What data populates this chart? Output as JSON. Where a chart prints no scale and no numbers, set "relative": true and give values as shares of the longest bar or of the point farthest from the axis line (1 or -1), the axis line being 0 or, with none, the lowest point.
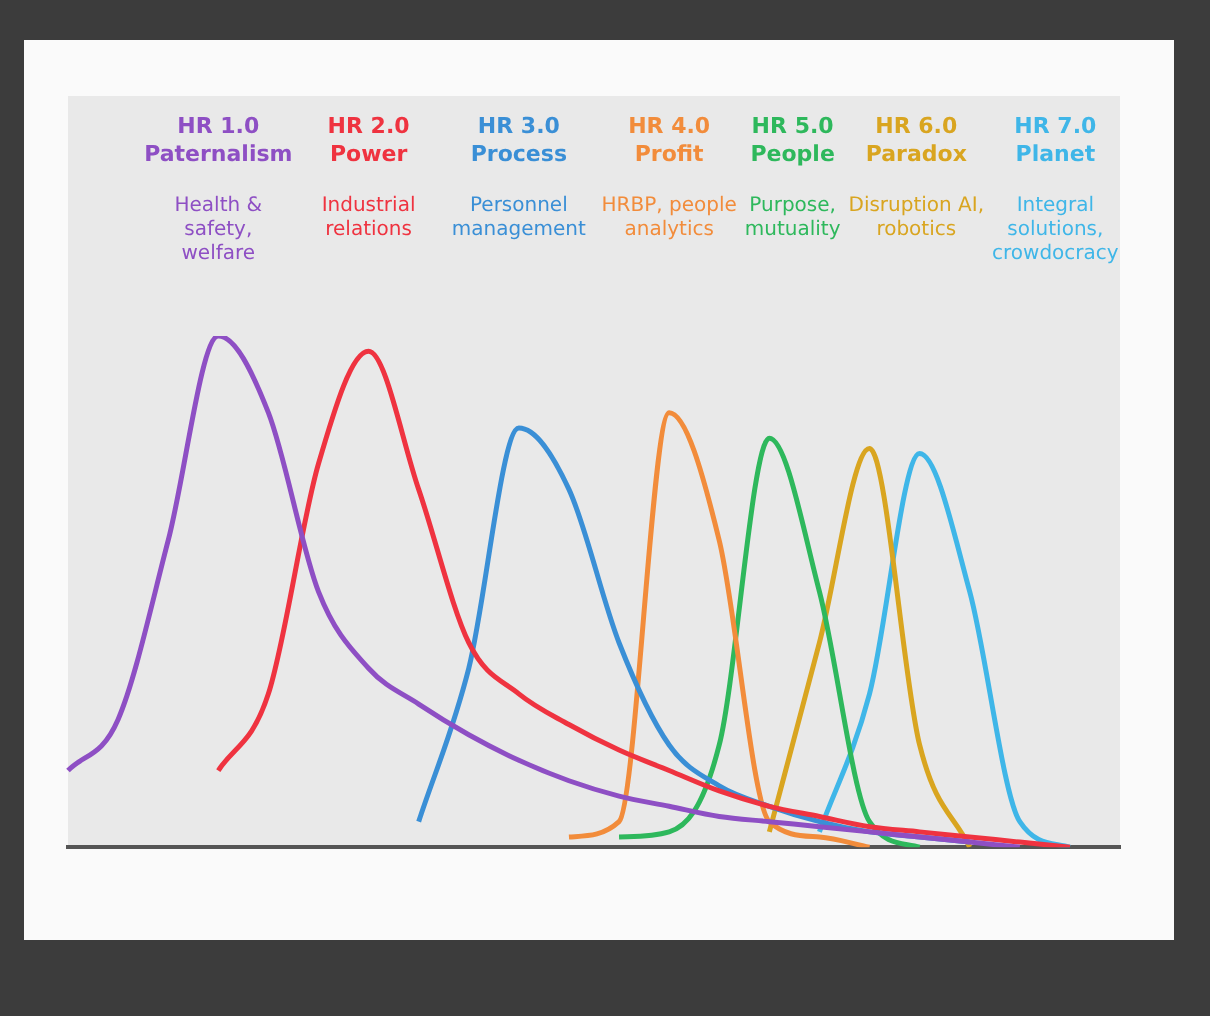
{
  "chart_data": {
    "type": "line",
    "relative": true,
    "marker": "none",
    "grid": false,
    "legend": false,
    "categories": [
      null,
      null,
      null,
      null,
      null,
      null,
      null,
      null,
      null,
      null,
      null,
      null,
      null,
      null,
      null,
      null,
      null,
      null,
      null,
      null,
      null,
      null
    ],
    "series": [
      {
        "name": "HR 1.0 Paternalism",
        "color": "#8e4fc4",
        "values": [
          0.15,
          0.25,
          0.6,
          1,
          0.85,
          0.5,
          0.35,
          0.28,
          0.22,
          0.17,
          0.13,
          0.1,
          0.08,
          0.06,
          0.05,
          0.04,
          0.03,
          0.02,
          0.01,
          0,
          null,
          null
        ]
      },
      {
        "name": "HR 2.0 Power",
        "color": "#ef3340",
        "values": [
          null,
          null,
          null,
          0.15,
          0.3,
          0.75,
          0.97,
          0.7,
          0.4,
          0.3,
          0.24,
          0.19,
          0.15,
          0.11,
          0.08,
          0.06,
          0.04,
          0.03,
          0.02,
          0.01,
          0,
          null
        ]
      },
      {
        "name": "HR 3.0 Process",
        "color": "#3a8fd6",
        "values": [
          null,
          null,
          null,
          null,
          null,
          null,
          null,
          0.05,
          0.35,
          0.82,
          0.7,
          0.4,
          0.2,
          0.12,
          0.08,
          0.05,
          0.03,
          0.02,
          0.01,
          null,
          null,
          null
        ]
      },
      {
        "name": "HR 4.0 Profit",
        "color": "#f28c3b",
        "values": [
          null,
          null,
          null,
          null,
          null,
          null,
          null,
          null,
          null,
          null,
          0.02,
          0.05,
          0.85,
          0.6,
          0.05,
          0.02,
          0,
          null,
          null,
          null,
          null,
          null
        ]
      },
      {
        "name": "HR 5.0 People",
        "color": "#2eb85c",
        "values": [
          null,
          null,
          null,
          null,
          null,
          null,
          null,
          null,
          null,
          null,
          null,
          0.02,
          0.03,
          0.2,
          0.8,
          0.5,
          0.05,
          0,
          null,
          null,
          null,
          null
        ]
      },
      {
        "name": "HR 6.0 Paradox",
        "color": "#d9a520",
        "values": [
          null,
          null,
          null,
          null,
          null,
          null,
          null,
          null,
          null,
          null,
          null,
          null,
          null,
          null,
          0.03,
          0.4,
          0.78,
          0.2,
          0,
          null,
          null,
          null
        ]
      },
      {
        "name": "HR 7.0 Planet",
        "color": "#3fb6e8",
        "values": [
          null,
          null,
          null,
          null,
          null,
          null,
          null,
          null,
          null,
          null,
          null,
          null,
          null,
          null,
          null,
          0.03,
          0.3,
          0.77,
          0.5,
          0.05,
          0,
          null
        ]
      }
    ],
    "annotations": [
      "Health & safety, welfare",
      "Industrial relations",
      "Personnel management",
      "HRBP, people analytics",
      "Purpose, mutuality",
      "Disruption AI, robotics",
      "Integral solutions, crowdocracy"
    ]
  }
}
